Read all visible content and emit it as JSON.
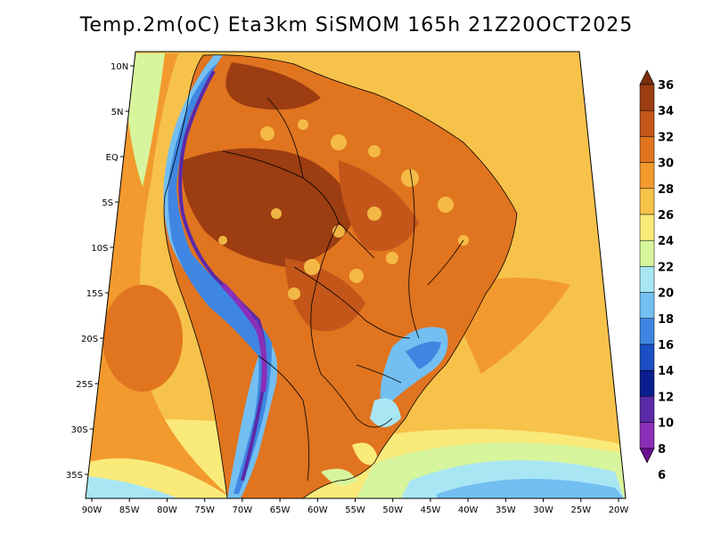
{
  "title": "Temp.2m(oC) Eta3km SiSMOM 165h 21Z20OCT2025",
  "map": {
    "lon_ticks": [
      "90W",
      "85W",
      "80W",
      "75W",
      "70W",
      "65W",
      "60W",
      "55W",
      "50W",
      "45W",
      "40W",
      "35W",
      "30W",
      "25W",
      "20W"
    ],
    "lat_ticks": [
      "10N",
      "5N",
      "EQ",
      "5S",
      "10S",
      "15S",
      "20S",
      "25S",
      "30S",
      "35S"
    ]
  },
  "colorbar": {
    "labels": [
      "36",
      "34",
      "32",
      "30",
      "28",
      "26",
      "24",
      "22",
      "20",
      "18",
      "16",
      "14",
      "12",
      "10",
      "8",
      "6"
    ],
    "colors": [
      "#7a2d0c",
      "#9c3d12",
      "#c4561a",
      "#e0741f",
      "#f29a2e",
      "#f7c24a",
      "#f9ea7a",
      "#d7f59c",
      "#a9e6f4",
      "#73bff2",
      "#3f86e2",
      "#1b4fc4",
      "#0a1f8f",
      "#5a2aa8",
      "#8a2fb8",
      "#6a1090"
    ],
    "units": "oC"
  }
}
